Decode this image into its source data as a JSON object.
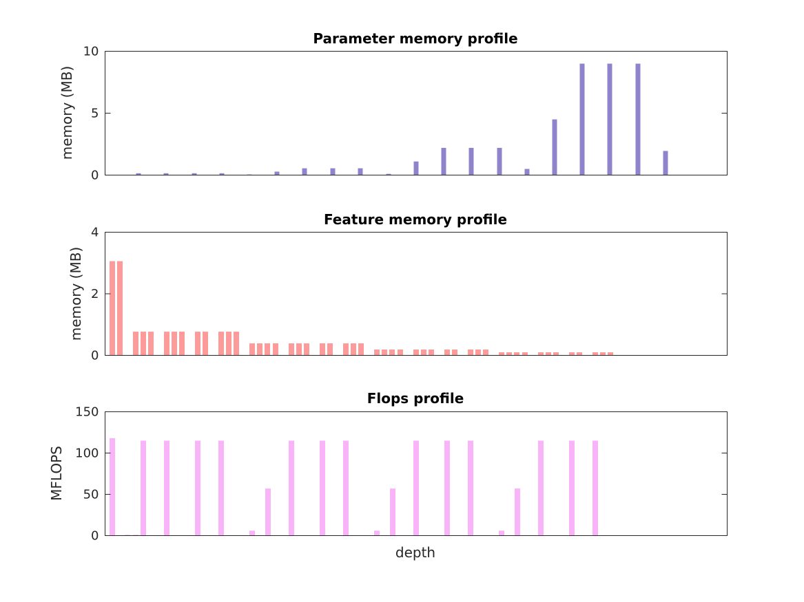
{
  "figure": {
    "xlabel": "depth"
  },
  "chart_data": [
    {
      "type": "bar",
      "title": "Parameter memory profile",
      "ylabel": "memory (MB)",
      "xlabel": "",
      "ylim": [
        0,
        10
      ],
      "yticks": [
        0,
        5,
        10
      ],
      "color": "#8f84cc",
      "bar_width": 7,
      "x": [
        160,
        201,
        241,
        282,
        322,
        362,
        402,
        442,
        483,
        523,
        564,
        604,
        644,
        684,
        725,
        765,
        805,
        845,
        885,
        926,
        966
      ],
      "values": [
        0.02,
        0.15,
        0.15,
        0.15,
        0.15,
        0.05,
        0.28,
        0.55,
        0.55,
        0.55,
        0.1,
        1.1,
        2.2,
        2.2,
        2.2,
        0.5,
        4.5,
        9.0,
        9.0,
        9.0,
        1.95
      ]
    },
    {
      "type": "bar",
      "title": "Feature memory profile",
      "ylabel": "memory (MB)",
      "xlabel": "",
      "ylim": [
        0,
        4
      ],
      "yticks": [
        0,
        2,
        4
      ],
      "color": "#fd9b9b",
      "bar_width": 8,
      "x": [
        163,
        174,
        197,
        208,
        219,
        242,
        253,
        264,
        287,
        298,
        321,
        332,
        343,
        366,
        377,
        388,
        400,
        423,
        434,
        445,
        468,
        479,
        502,
        513,
        524,
        547,
        558,
        569,
        581,
        604,
        615,
        626,
        649,
        660,
        683,
        694,
        705,
        728,
        739,
        750,
        762,
        785,
        796,
        807,
        830,
        841,
        864,
        875,
        886
      ],
      "values": [
        3.06,
        3.06,
        0.77,
        0.77,
        0.77,
        0.77,
        0.77,
        0.77,
        0.77,
        0.77,
        0.77,
        0.77,
        0.77,
        0.39,
        0.39,
        0.39,
        0.39,
        0.39,
        0.39,
        0.39,
        0.39,
        0.39,
        0.39,
        0.39,
        0.39,
        0.19,
        0.19,
        0.19,
        0.19,
        0.19,
        0.19,
        0.19,
        0.19,
        0.19,
        0.19,
        0.19,
        0.19,
        0.1,
        0.1,
        0.1,
        0.1,
        0.1,
        0.1,
        0.1,
        0.1,
        0.1,
        0.1,
        0.1,
        0.1
      ]
    },
    {
      "type": "bar",
      "title": "Flops profile",
      "ylabel": "MFLOPS",
      "xlabel": "depth",
      "ylim": [
        0,
        150
      ],
      "yticks": [
        0,
        50,
        100,
        150
      ],
      "color": "#f9b3f9",
      "bar_width": 8,
      "x": [
        163,
        185,
        197,
        208,
        231,
        242,
        276,
        287,
        310,
        321,
        355,
        366,
        389,
        423,
        468,
        502,
        547,
        570,
        604,
        649,
        683,
        728,
        751,
        785,
        830,
        864,
        943
      ],
      "values": [
        118,
        1,
        1,
        115,
        0.5,
        115,
        0.5,
        115,
        0.5,
        115,
        0.5,
        6,
        57,
        115,
        115,
        115,
        6,
        57,
        115,
        115,
        115,
        6,
        57,
        115,
        115,
        115,
        0.3
      ]
    }
  ]
}
